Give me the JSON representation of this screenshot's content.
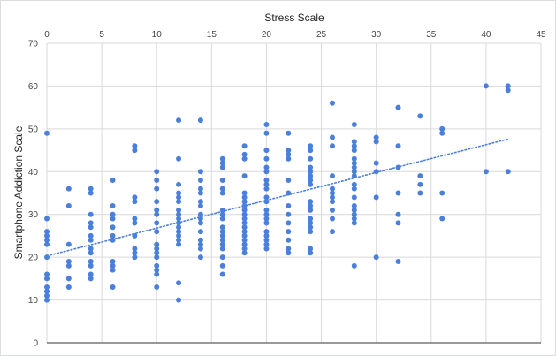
{
  "chart_data": {
    "type": "scatter",
    "title": "",
    "xlabel": "Stress Scale",
    "ylabel": "Smartphone Addiction Scale",
    "xlim": [
      0,
      45
    ],
    "ylim": [
      0,
      70
    ],
    "x_ticks": [
      0,
      5,
      10,
      15,
      20,
      25,
      30,
      35,
      40,
      45
    ],
    "y_ticks": [
      0,
      10,
      20,
      30,
      40,
      50,
      60,
      70
    ],
    "x_axis_position": "top",
    "grid": true,
    "legend": "none",
    "point_color": "#4a7fdc",
    "trendline": {
      "type": "linear",
      "style": "dotted",
      "color": "#4a7fdc",
      "x": [
        0,
        42
      ],
      "y": [
        20.3,
        47.6
      ]
    },
    "series": [
      {
        "points": [
          [
            0,
            49
          ],
          [
            0,
            29
          ],
          [
            0,
            26
          ],
          [
            0,
            25
          ],
          [
            0,
            24
          ],
          [
            0,
            23
          ],
          [
            0,
            20
          ],
          [
            0,
            16
          ],
          [
            0,
            15
          ],
          [
            0,
            13
          ],
          [
            0,
            12
          ],
          [
            0,
            11
          ],
          [
            0,
            10
          ],
          [
            2,
            36
          ],
          [
            2,
            32
          ],
          [
            2,
            23
          ],
          [
            2,
            19
          ],
          [
            2,
            18
          ],
          [
            2,
            15
          ],
          [
            2,
            13
          ],
          [
            4,
            36
          ],
          [
            4,
            35
          ],
          [
            4,
            30
          ],
          [
            4,
            28
          ],
          [
            4,
            27
          ],
          [
            4,
            25
          ],
          [
            4,
            24
          ],
          [
            4,
            22
          ],
          [
            4,
            21
          ],
          [
            4,
            19
          ],
          [
            4,
            18
          ],
          [
            4,
            16
          ],
          [
            4,
            15
          ],
          [
            6,
            38
          ],
          [
            6,
            32
          ],
          [
            6,
            30
          ],
          [
            6,
            29
          ],
          [
            6,
            27
          ],
          [
            6,
            25
          ],
          [
            6,
            24
          ],
          [
            6,
            19
          ],
          [
            6,
            18
          ],
          [
            6,
            17
          ],
          [
            6,
            13
          ],
          [
            8,
            46
          ],
          [
            8,
            45
          ],
          [
            8,
            34
          ],
          [
            8,
            33
          ],
          [
            8,
            29
          ],
          [
            8,
            28
          ],
          [
            8,
            25
          ],
          [
            8,
            22
          ],
          [
            8,
            21
          ],
          [
            8,
            20
          ],
          [
            10,
            40
          ],
          [
            10,
            38
          ],
          [
            10,
            36
          ],
          [
            10,
            33
          ],
          [
            10,
            31
          ],
          [
            10,
            30
          ],
          [
            10,
            28
          ],
          [
            10,
            26
          ],
          [
            10,
            23
          ],
          [
            10,
            22
          ],
          [
            10,
            21
          ],
          [
            10,
            20
          ],
          [
            10,
            18
          ],
          [
            10,
            17
          ],
          [
            10,
            16
          ],
          [
            10,
            13
          ],
          [
            12,
            52
          ],
          [
            12,
            43
          ],
          [
            12,
            37
          ],
          [
            12,
            35
          ],
          [
            12,
            34
          ],
          [
            12,
            33
          ],
          [
            12,
            31
          ],
          [
            12,
            30
          ],
          [
            12,
            29
          ],
          [
            12,
            28
          ],
          [
            12,
            27
          ],
          [
            12,
            26
          ],
          [
            12,
            25
          ],
          [
            12,
            24
          ],
          [
            12,
            23
          ],
          [
            12,
            14
          ],
          [
            12,
            10
          ],
          [
            14,
            52
          ],
          [
            14,
            40
          ],
          [
            14,
            38
          ],
          [
            14,
            36
          ],
          [
            14,
            35
          ],
          [
            14,
            33
          ],
          [
            14,
            32
          ],
          [
            14,
            30
          ],
          [
            14,
            29
          ],
          [
            14,
            28
          ],
          [
            14,
            26
          ],
          [
            14,
            24
          ],
          [
            14,
            23
          ],
          [
            14,
            22
          ],
          [
            14,
            20
          ],
          [
            16,
            43
          ],
          [
            16,
            42
          ],
          [
            16,
            41
          ],
          [
            16,
            38
          ],
          [
            16,
            36
          ],
          [
            16,
            35
          ],
          [
            16,
            31
          ],
          [
            16,
            30
          ],
          [
            16,
            29
          ],
          [
            16,
            27
          ],
          [
            16,
            26
          ],
          [
            16,
            25
          ],
          [
            16,
            24
          ],
          [
            16,
            23
          ],
          [
            16,
            22
          ],
          [
            16,
            20
          ],
          [
            16,
            18
          ],
          [
            16,
            16
          ],
          [
            18,
            46
          ],
          [
            18,
            44
          ],
          [
            18,
            43
          ],
          [
            18,
            39
          ],
          [
            18,
            35
          ],
          [
            18,
            34
          ],
          [
            18,
            33
          ],
          [
            18,
            32
          ],
          [
            18,
            31
          ],
          [
            18,
            30
          ],
          [
            18,
            29
          ],
          [
            18,
            28
          ],
          [
            18,
            27
          ],
          [
            18,
            26
          ],
          [
            18,
            25
          ],
          [
            18,
            24
          ],
          [
            18,
            23
          ],
          [
            18,
            22
          ],
          [
            18,
            21
          ],
          [
            20,
            51
          ],
          [
            20,
            49
          ],
          [
            20,
            45
          ],
          [
            20,
            43
          ],
          [
            20,
            41
          ],
          [
            20,
            40
          ],
          [
            20,
            38
          ],
          [
            20,
            37
          ],
          [
            20,
            36
          ],
          [
            20,
            34
          ],
          [
            20,
            33
          ],
          [
            20,
            31
          ],
          [
            20,
            30
          ],
          [
            20,
            29
          ],
          [
            20,
            28
          ],
          [
            20,
            26
          ],
          [
            20,
            25
          ],
          [
            20,
            24
          ],
          [
            20,
            23
          ],
          [
            20,
            22
          ],
          [
            22,
            49
          ],
          [
            22,
            45
          ],
          [
            22,
            44
          ],
          [
            22,
            43
          ],
          [
            22,
            38
          ],
          [
            22,
            35
          ],
          [
            22,
            32
          ],
          [
            22,
            30
          ],
          [
            22,
            28
          ],
          [
            22,
            26
          ],
          [
            22,
            24
          ],
          [
            22,
            22
          ],
          [
            22,
            21
          ],
          [
            24,
            46
          ],
          [
            24,
            45
          ],
          [
            24,
            43
          ],
          [
            24,
            41
          ],
          [
            24,
            40
          ],
          [
            24,
            39
          ],
          [
            24,
            38
          ],
          [
            24,
            37
          ],
          [
            24,
            33
          ],
          [
            24,
            32
          ],
          [
            24,
            31
          ],
          [
            24,
            29
          ],
          [
            24,
            28
          ],
          [
            24,
            27
          ],
          [
            24,
            26
          ],
          [
            24,
            22
          ],
          [
            24,
            21
          ],
          [
            26,
            56
          ],
          [
            26,
            48
          ],
          [
            26,
            46
          ],
          [
            26,
            39
          ],
          [
            26,
            36
          ],
          [
            26,
            35
          ],
          [
            26,
            34
          ],
          [
            26,
            33
          ],
          [
            26,
            31
          ],
          [
            26,
            29
          ],
          [
            26,
            26
          ],
          [
            28,
            51
          ],
          [
            28,
            47
          ],
          [
            28,
            46
          ],
          [
            28,
            45
          ],
          [
            28,
            43
          ],
          [
            28,
            42
          ],
          [
            28,
            41
          ],
          [
            28,
            40
          ],
          [
            28,
            39
          ],
          [
            28,
            37
          ],
          [
            28,
            36
          ],
          [
            28,
            34
          ],
          [
            28,
            32
          ],
          [
            28,
            31
          ],
          [
            28,
            30
          ],
          [
            28,
            29
          ],
          [
            28,
            28
          ],
          [
            28,
            18
          ],
          [
            30,
            48
          ],
          [
            30,
            47
          ],
          [
            30,
            42
          ],
          [
            30,
            40
          ],
          [
            30,
            34
          ],
          [
            30,
            20
          ],
          [
            32,
            55
          ],
          [
            32,
            46
          ],
          [
            32,
            41
          ],
          [
            32,
            35
          ],
          [
            32,
            30
          ],
          [
            32,
            28
          ],
          [
            32,
            19
          ],
          [
            34,
            53
          ],
          [
            34,
            39
          ],
          [
            34,
            37
          ],
          [
            34,
            35
          ],
          [
            36,
            50
          ],
          [
            36,
            49
          ],
          [
            36,
            35
          ],
          [
            36,
            29
          ],
          [
            40,
            60
          ],
          [
            40,
            40
          ],
          [
            42,
            60
          ],
          [
            42,
            59
          ],
          [
            42,
            40
          ]
        ]
      }
    ]
  }
}
